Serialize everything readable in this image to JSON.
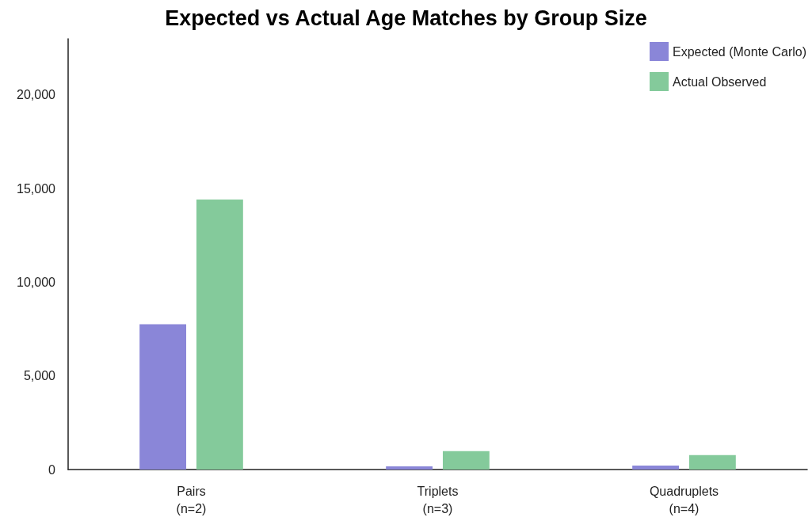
{
  "chart_data": {
    "type": "bar",
    "title": "Expected vs Actual Age Matches by Group Size",
    "categories": [
      "Pairs\n(n=2)",
      "Triplets\n(n=3)",
      "Quadruplets\n(n=4)"
    ],
    "series": [
      {
        "name": "Expected (Monte Carlo)",
        "color": "#8a86d8",
        "values": [
          7760,
          170,
          210
        ]
      },
      {
        "name": "Actual Observed",
        "color": "#84ca9b",
        "values": [
          14420,
          980,
          770
        ]
      }
    ],
    "ylim": [
      0,
      23000
    ],
    "yticks": [
      0,
      {
        "value": 5000,
        "label": "5,000"
      },
      {
        "value": 10000,
        "label": "10,000"
      },
      {
        "value": 15000,
        "label": "15,000"
      },
      {
        "value": 20000,
        "label": "20,000"
      }
    ],
    "grid": false,
    "legend": "top right"
  }
}
